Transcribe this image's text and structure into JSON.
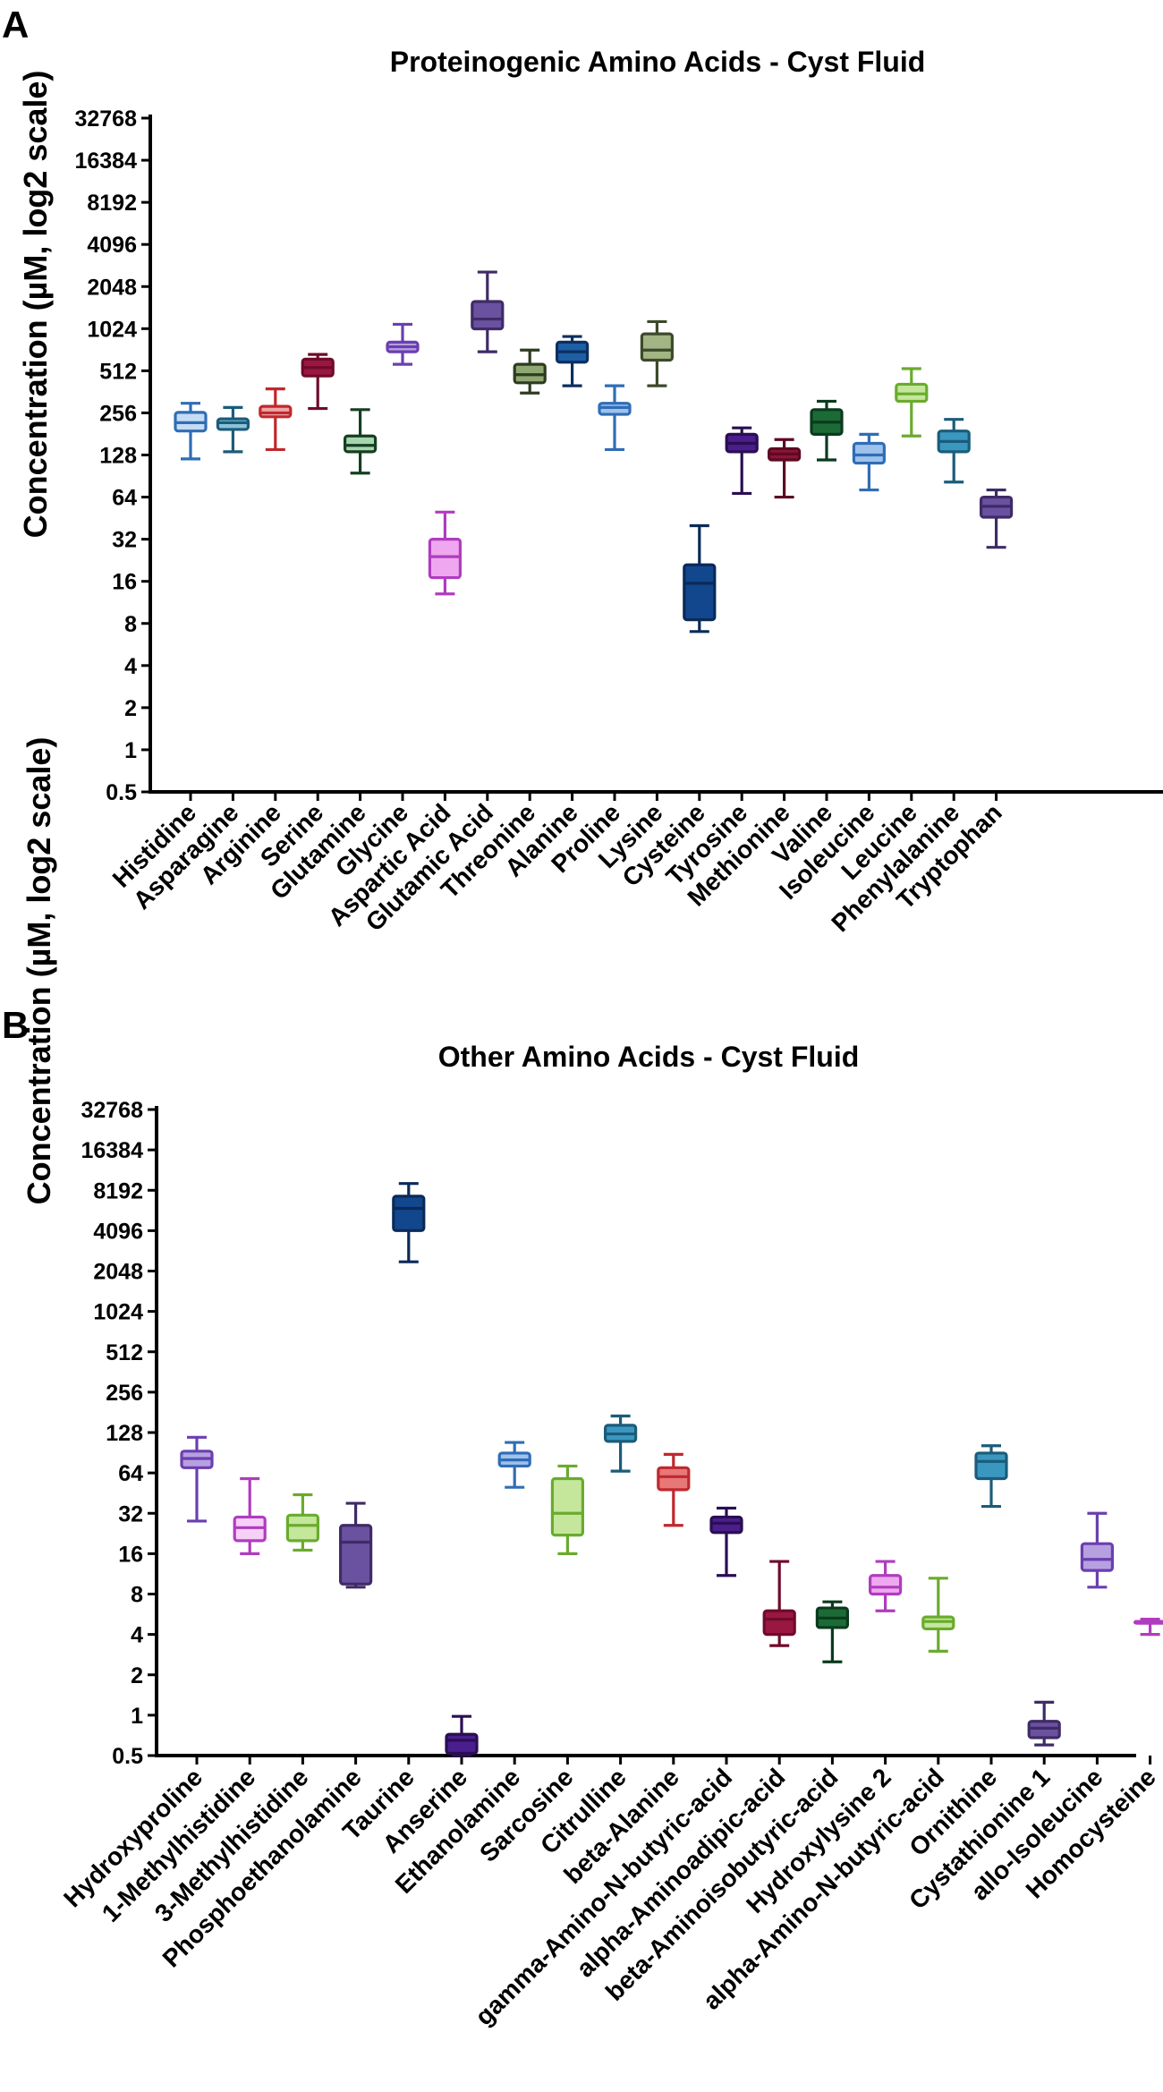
{
  "chart_data": [
    {
      "type": "box",
      "panel_letter": "A",
      "title": "Proteinogenic Amino Acids - Cyst Fluid",
      "ylabel": "Concentration (µM, log2 scale)",
      "xlabel": "",
      "yscale": "log2",
      "ylim": [
        0.5,
        32768
      ],
      "yticks": [
        "0.5",
        "1",
        "2",
        "4",
        "8",
        "16",
        "32",
        "64",
        "128",
        "256",
        "512",
        "1024",
        "2048",
        "4096",
        "8192",
        "16384",
        "32768"
      ],
      "series": [
        {
          "name": "Histidine",
          "min": 120,
          "q1": 190,
          "median": 218,
          "q3": 258,
          "max": 300,
          "color": "#2f6db6",
          "fill": "#c6dcf4"
        },
        {
          "name": "Asparagine",
          "min": 135,
          "q1": 195,
          "median": 218,
          "q3": 232,
          "max": 280,
          "color": "#1b5c7a",
          "fill": "#8cc3d8"
        },
        {
          "name": "Arginine",
          "min": 140,
          "q1": 240,
          "median": 256,
          "q3": 285,
          "max": 380,
          "color": "#c0282d",
          "fill": "#f0a3a3"
        },
        {
          "name": "Serine",
          "min": 275,
          "q1": 470,
          "median": 540,
          "q3": 620,
          "max": 670,
          "color": "#6e0b2a",
          "fill": "#9a1742"
        },
        {
          "name": "Glutamine",
          "min": 95,
          "q1": 135,
          "median": 150,
          "q3": 175,
          "max": 270,
          "color": "#163e22",
          "fill": "#a6d5ae"
        },
        {
          "name": "Glycine",
          "min": 570,
          "q1": 700,
          "median": 760,
          "q3": 820,
          "max": 1100,
          "color": "#6a3fb0",
          "fill": "#b7a0e0"
        },
        {
          "name": "Aspartic Acid",
          "min": 13,
          "q1": 17,
          "median": 24,
          "q3": 32,
          "max": 50,
          "color": "#b03cbf",
          "fill": "#efa8ef"
        },
        {
          "name": "Glutamic Acid",
          "min": 700,
          "q1": 1020,
          "median": 1200,
          "q3": 1600,
          "max": 2600,
          "color": "#3f2b66",
          "fill": "#6b52a0"
        },
        {
          "name": "Threonine",
          "min": 355,
          "q1": 420,
          "median": 480,
          "q3": 570,
          "max": 720,
          "color": "#2d3b20",
          "fill": "#8fa872"
        },
        {
          "name": "Alanine",
          "min": 400,
          "q1": 590,
          "median": 700,
          "q3": 820,
          "max": 900,
          "color": "#0c2f60",
          "fill": "#1c5fa5"
        },
        {
          "name": "Proline",
          "min": 140,
          "q1": 250,
          "median": 280,
          "q3": 300,
          "max": 400,
          "color": "#2f6db6",
          "fill": "#9fc2ec"
        },
        {
          "name": "Lysine",
          "min": 400,
          "q1": 610,
          "median": 720,
          "q3": 940,
          "max": 1150,
          "color": "#3c4a2a",
          "fill": "#a3b584"
        },
        {
          "name": "Cysteine",
          "min": 7,
          "q1": 8.5,
          "median": 15.5,
          "q3": 21,
          "max": 40,
          "color": "#0a2a58",
          "fill": "#12478e"
        },
        {
          "name": "Tyrosine",
          "min": 68,
          "q1": 135,
          "median": 155,
          "q3": 180,
          "max": 200,
          "color": "#2a0e52",
          "fill": "#4a1e8c"
        },
        {
          "name": "Methionine",
          "min": 64,
          "q1": 118,
          "median": 130,
          "q3": 142,
          "max": 165,
          "color": "#5c0a22",
          "fill": "#8a1436"
        },
        {
          "name": "Valine",
          "min": 118,
          "q1": 180,
          "median": 220,
          "q3": 270,
          "max": 310,
          "color": "#0b3a1e",
          "fill": "#1c6b36"
        },
        {
          "name": "Isoleucine",
          "min": 72,
          "q1": 112,
          "median": 128,
          "q3": 155,
          "max": 180,
          "color": "#2f6db6",
          "fill": "#9fc2ec"
        },
        {
          "name": "Leucine",
          "min": 175,
          "q1": 310,
          "median": 350,
          "q3": 410,
          "max": 530,
          "color": "#6aab2e",
          "fill": "#c4e79c"
        },
        {
          "name": "Phenylalanine",
          "min": 82,
          "q1": 135,
          "median": 160,
          "q3": 190,
          "max": 230,
          "color": "#1b5c7a",
          "fill": "#3a98c0"
        },
        {
          "name": "Tryptophan",
          "min": 28,
          "q1": 46,
          "median": 55,
          "q3": 64,
          "max": 72,
          "color": "#3f2b66",
          "fill": "#6b52a0"
        }
      ]
    },
    {
      "type": "box",
      "panel_letter": "B",
      "title": "Other Amino Acids - Cyst Fluid",
      "ylabel": "Concentration (µM, log2 scale)",
      "xlabel": "",
      "yscale": "log2",
      "ylim": [
        0.5,
        32768
      ],
      "yticks": [
        "0.5",
        "1",
        "2",
        "4",
        "8",
        "16",
        "32",
        "64",
        "128",
        "256",
        "512",
        "1024",
        "2048",
        "4096",
        "8192",
        "16384",
        "32768"
      ],
      "series": [
        {
          "name": "Hydroxyproline",
          "min": 28,
          "q1": 70,
          "median": 82,
          "q3": 93,
          "max": 118,
          "color": "#6a3fb0",
          "fill": "#b7a0e0"
        },
        {
          "name": "1-Methylhistidine",
          "min": 16,
          "q1": 20,
          "median": 25,
          "q3": 30,
          "max": 58,
          "color": "#b03cbf",
          "fill": "#f6d0f6"
        },
        {
          "name": "3-Methylhistidine",
          "min": 17,
          "q1": 20,
          "median": 26,
          "q3": 31,
          "max": 44,
          "color": "#6aab2e",
          "fill": "#c4e79c"
        },
        {
          "name": "Phosphoethanolamine",
          "min": 9,
          "q1": 9.5,
          "median": 19.5,
          "q3": 26,
          "max": 38,
          "color": "#3f2b66",
          "fill": "#6b52a0"
        },
        {
          "name": "Taurine",
          "min": 2400,
          "q1": 4100,
          "median": 6000,
          "q3": 7400,
          "max": 9200,
          "color": "#0a2a58",
          "fill": "#12478e"
        },
        {
          "name": "Anserine",
          "min": 0.5,
          "q1": 0.52,
          "median": 0.65,
          "q3": 0.72,
          "max": 0.98,
          "color": "#2a0e52",
          "fill": "#4a1e8c"
        },
        {
          "name": "Ethanolamine",
          "min": 50,
          "q1": 72,
          "median": 80,
          "q3": 90,
          "max": 108,
          "color": "#2f6db6",
          "fill": "#9fc2ec"
        },
        {
          "name": "Sarcosine",
          "min": 16,
          "q1": 22,
          "median": 32,
          "q3": 58,
          "max": 72,
          "color": "#6aab2e",
          "fill": "#c4e79c"
        },
        {
          "name": "Citrulline",
          "min": 66,
          "q1": 110,
          "median": 125,
          "q3": 145,
          "max": 170,
          "color": "#1b5c7a",
          "fill": "#3a98c0"
        },
        {
          "name": "beta-Alanine",
          "min": 26,
          "q1": 48,
          "median": 60,
          "q3": 70,
          "max": 88,
          "color": "#c0282d",
          "fill": "#e87878"
        },
        {
          "name": "gamma-Amino-N-butyric-acid",
          "min": 11,
          "q1": 23,
          "median": 27,
          "q3": 30,
          "max": 35,
          "color": "#2a0e52",
          "fill": "#4a1e8c"
        },
        {
          "name": "alpha-Aminoadipic-acid",
          "min": 3.3,
          "q1": 4,
          "median": 5.2,
          "q3": 6,
          "max": 14,
          "color": "#6e0b2a",
          "fill": "#9a1742"
        },
        {
          "name": "beta-Aminoisobutyric-acid",
          "min": 2.5,
          "q1": 4.5,
          "median": 5.3,
          "q3": 6.3,
          "max": 7,
          "color": "#0b3a1e",
          "fill": "#1c6b36"
        },
        {
          "name": "Hydroxylysine 2",
          "min": 6,
          "q1": 8,
          "median": 9,
          "q3": 11,
          "max": 14,
          "color": "#b03cbf",
          "fill": "#efa8ef"
        },
        {
          "name": "alpha-Amino-N-butyric-acid",
          "min": 3,
          "q1": 4.4,
          "median": 5,
          "q3": 5.4,
          "max": 10.5,
          "color": "#6aab2e",
          "fill": "#c4e79c"
        },
        {
          "name": "Ornithine",
          "min": 36,
          "q1": 58,
          "median": 78,
          "q3": 90,
          "max": 102,
          "color": "#1b5c7a",
          "fill": "#3a98c0"
        },
        {
          "name": "Cystathionine 1",
          "min": 0.6,
          "q1": 0.68,
          "median": 0.8,
          "q3": 0.9,
          "max": 1.25,
          "color": "#3f2b66",
          "fill": "#6b52a0"
        },
        {
          "name": "allo-Isoleucine",
          "min": 9,
          "q1": 12,
          "median": 14.5,
          "q3": 19,
          "max": 32,
          "color": "#6a3fb0",
          "fill": "#b7a0e0"
        },
        {
          "name": "Homocysteine",
          "min": 4,
          "q1": 5,
          "median": 5,
          "q3": 5,
          "max": 5.2,
          "color": "#b03cbf",
          "fill": "#efa8ef"
        }
      ]
    }
  ]
}
